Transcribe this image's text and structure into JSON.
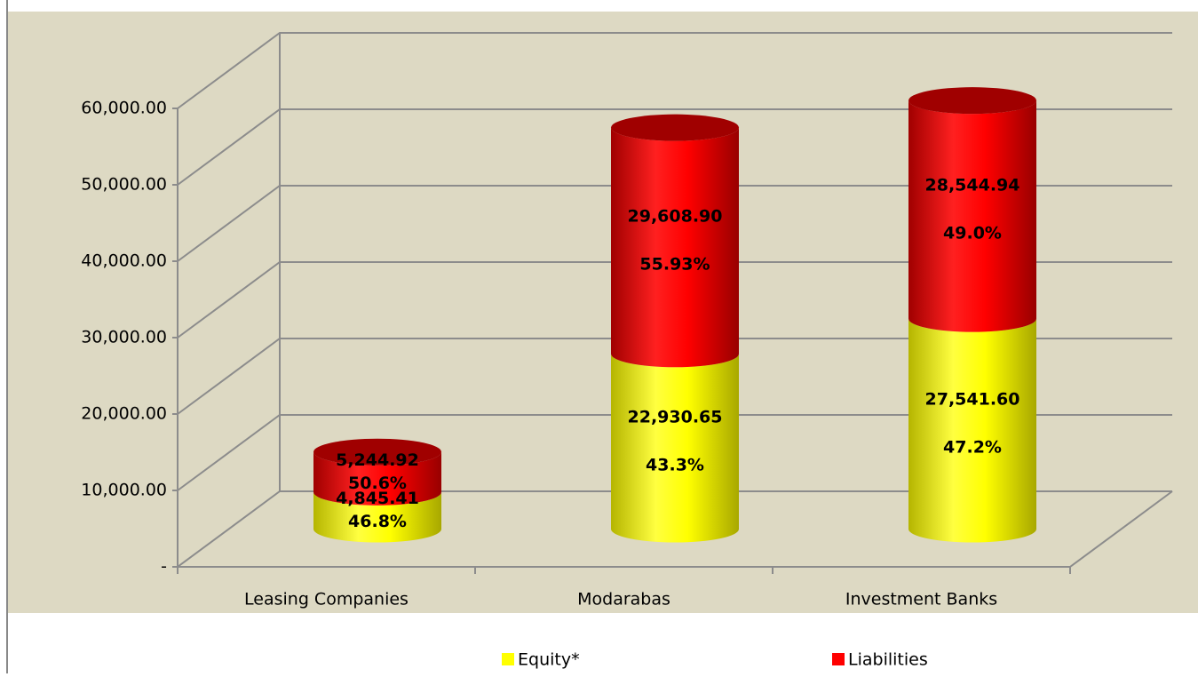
{
  "chart_data": {
    "type": "bar3d_stacked",
    "categories": [
      "Leasing Companies",
      "Modarabas",
      "Investment Banks"
    ],
    "series": [
      {
        "name": "Equity*",
        "color": "#ffff00",
        "values": [
          4845.41,
          22930.65,
          27541.6
        ],
        "value_labels": [
          "4,845.41",
          "22,930.65",
          "27,541.60"
        ],
        "percent_labels": [
          "46.8%",
          "43.3%",
          "47.2%"
        ]
      },
      {
        "name": "Liabilities",
        "color": "#ff0000",
        "values": [
          5244.92,
          29608.9,
          28544.94
        ],
        "value_labels": [
          "5,244.92",
          "29,608.90",
          "28,544.94"
        ],
        "percent_labels": [
          "50.6%",
          "55.93%",
          "49.0%"
        ]
      }
    ],
    "ylim": [
      0,
      60000
    ],
    "yticks": [
      {
        "value": 0,
        "label": "-"
      },
      {
        "value": 10000,
        "label": "10,000.00"
      },
      {
        "value": 20000,
        "label": "20,000.00"
      },
      {
        "value": 30000,
        "label": "30,000.00"
      },
      {
        "value": 40000,
        "label": "40,000.00"
      },
      {
        "value": 50000,
        "label": "50,000.00"
      },
      {
        "value": 60000,
        "label": "60,000.00"
      }
    ],
    "grid": true,
    "legend": "bottom"
  }
}
